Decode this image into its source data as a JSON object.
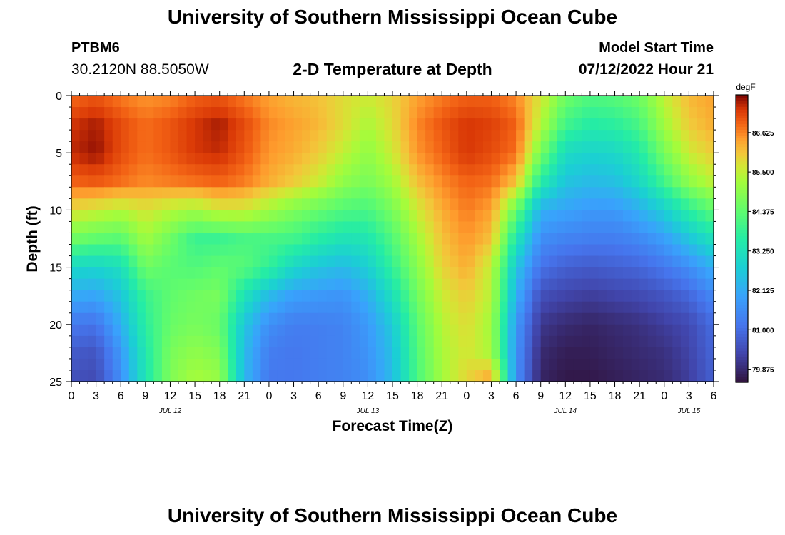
{
  "header": {
    "title": "University of Southern Mississippi Ocean Cube",
    "station_id": "PTBM6",
    "station_coords": "30.2120N  88.5050W",
    "chart_subtitle": "2-D Temperature at Depth",
    "model_start_label": "Model Start Time",
    "model_start_value": "07/12/2022 Hour 21"
  },
  "footer": {
    "title": "University of Southern Mississippi Ocean Cube"
  },
  "chart_data": {
    "type": "heatmap",
    "title": "2-D Temperature at Depth",
    "xlabel": "Forecast Time(Z)",
    "ylabel": "Depth (ft)",
    "xlim": [
      0,
      78
    ],
    "ylim": [
      0,
      25
    ],
    "x_ticks": [
      0,
      3,
      6,
      9,
      12,
      15,
      18,
      21,
      24,
      27,
      30,
      33,
      36,
      39,
      42,
      45,
      48,
      51,
      54,
      57,
      60,
      63,
      66,
      69,
      72,
      75,
      78
    ],
    "x_tick_labels": [
      "0",
      "3",
      "6",
      "9",
      "12",
      "15",
      "18",
      "21",
      "0",
      "3",
      "6",
      "9",
      "12",
      "15",
      "18",
      "21",
      "0",
      "3",
      "6",
      "9",
      "12",
      "15",
      "18",
      "21",
      "0",
      "3",
      "6"
    ],
    "date_labels": [
      {
        "x": 12,
        "label": "JUL 12"
      },
      {
        "x": 36,
        "label": "JUL 13"
      },
      {
        "x": 60,
        "label": "JUL 14"
      },
      {
        "x": 75,
        "label": "JUL 15"
      }
    ],
    "y_ticks": [
      0,
      5,
      10,
      15,
      20,
      25
    ],
    "colorbar": {
      "unit": "degF",
      "min": 79.5,
      "max": 87.7,
      "tick_values": [
        86.625,
        85.5,
        84.375,
        83.25,
        82.125,
        81.0,
        79.875
      ],
      "tick_labels": [
        "86.625",
        "85.500",
        "84.375",
        "83.250",
        "82.125",
        "81.000",
        "79.875"
      ]
    },
    "depths_ft": [
      0,
      2.5,
      5,
      7.5,
      10,
      12.5,
      15,
      17.5,
      20,
      22.5,
      25
    ],
    "times_h": [
      0,
      3,
      6,
      9,
      12,
      15,
      18,
      21,
      24,
      27,
      30,
      33,
      36,
      39,
      42,
      45,
      48,
      51,
      54,
      57,
      60,
      63,
      66,
      69,
      72,
      75,
      78
    ],
    "values_degF": [
      [
        86.8,
        87.0,
        86.7,
        86.5,
        86.6,
        86.9,
        87.0,
        86.7,
        86.4,
        86.2,
        86.1,
        85.8,
        85.6,
        85.9,
        86.4,
        86.7,
        86.9,
        86.9,
        86.6,
        85.7,
        84.6,
        84.2,
        84.3,
        84.6,
        85.5,
        86.2,
        86.4
      ],
      [
        87.3,
        87.5,
        87.1,
        86.8,
        87.0,
        87.3,
        87.5,
        87.1,
        86.6,
        86.4,
        86.2,
        85.8,
        85.3,
        85.8,
        86.6,
        87.0,
        87.3,
        87.2,
        86.9,
        85.4,
        84.0,
        83.6,
        83.7,
        84.1,
        85.2,
        86.0,
        86.3
      ],
      [
        87.4,
        87.6,
        87.1,
        86.8,
        87.0,
        87.3,
        87.4,
        87.0,
        86.5,
        86.3,
        86.0,
        85.5,
        85.0,
        85.6,
        86.5,
        86.9,
        87.3,
        87.1,
        86.8,
        84.7,
        83.1,
        82.9,
        83.0,
        83.5,
        84.7,
        85.6,
        86.0
      ],
      [
        86.9,
        87.0,
        86.8,
        86.6,
        86.7,
        86.8,
        86.9,
        86.7,
        86.3,
        86.0,
        85.6,
        85.0,
        84.7,
        85.2,
        86.1,
        86.6,
        86.9,
        86.8,
        86.1,
        83.6,
        82.6,
        82.4,
        82.5,
        83.0,
        84.0,
        85.0,
        85.5
      ],
      [
        85.8,
        85.6,
        85.4,
        85.7,
        85.4,
        85.2,
        85.6,
        85.6,
        85.2,
        84.8,
        84.5,
        84.2,
        84.1,
        84.7,
        85.6,
        86.3,
        86.7,
        86.4,
        84.5,
        82.2,
        82.0,
        81.8,
        81.8,
        82.2,
        82.8,
        83.7,
        84.4
      ],
      [
        84.6,
        84.4,
        84.3,
        85.2,
        84.6,
        83.9,
        83.9,
        84.1,
        84.1,
        84.0,
        83.6,
        83.3,
        83.4,
        84.2,
        85.2,
        86.1,
        86.5,
        86.1,
        83.4,
        81.6,
        81.4,
        81.3,
        81.3,
        81.5,
        81.9,
        82.6,
        83.3
      ],
      [
        83.0,
        82.9,
        83.2,
        84.6,
        84.3,
        84.2,
        84.4,
        84.3,
        83.8,
        83.0,
        82.6,
        82.4,
        82.8,
        83.8,
        84.9,
        85.9,
        86.3,
        85.5,
        82.6,
        81.1,
        80.8,
        80.7,
        80.8,
        80.9,
        81.2,
        81.6,
        82.2
      ],
      [
        82.1,
        82.0,
        82.6,
        83.9,
        84.4,
        84.6,
        84.7,
        83.3,
        82.4,
        81.9,
        81.8,
        81.7,
        82.2,
        83.2,
        84.6,
        85.6,
        86.0,
        85.4,
        82.2,
        80.5,
        80.3,
        80.2,
        80.3,
        80.4,
        80.6,
        80.9,
        81.5
      ],
      [
        81.2,
        81.1,
        82.2,
        83.7,
        84.5,
        84.7,
        84.5,
        82.6,
        81.6,
        81.3,
        81.3,
        81.4,
        81.8,
        82.7,
        84.3,
        85.4,
        85.8,
        85.2,
        81.8,
        80.1,
        79.9,
        79.8,
        79.9,
        80.0,
        80.2,
        80.4,
        81.0
      ],
      [
        80.7,
        80.6,
        81.8,
        83.5,
        84.7,
        85.0,
        84.8,
        82.4,
        81.3,
        81.2,
        81.3,
        81.4,
        81.7,
        82.5,
        84.2,
        85.3,
        85.7,
        85.3,
        81.7,
        79.9,
        79.7,
        79.7,
        79.8,
        79.9,
        80.0,
        80.3,
        80.9
      ],
      [
        80.5,
        80.4,
        81.6,
        83.4,
        84.8,
        85.3,
        85.1,
        82.3,
        81.2,
        81.2,
        81.3,
        81.4,
        81.6,
        82.4,
        84.1,
        85.2,
        85.9,
        86.5,
        81.6,
        79.8,
        79.6,
        79.6,
        79.7,
        79.8,
        79.9,
        80.2,
        80.8
      ]
    ]
  }
}
